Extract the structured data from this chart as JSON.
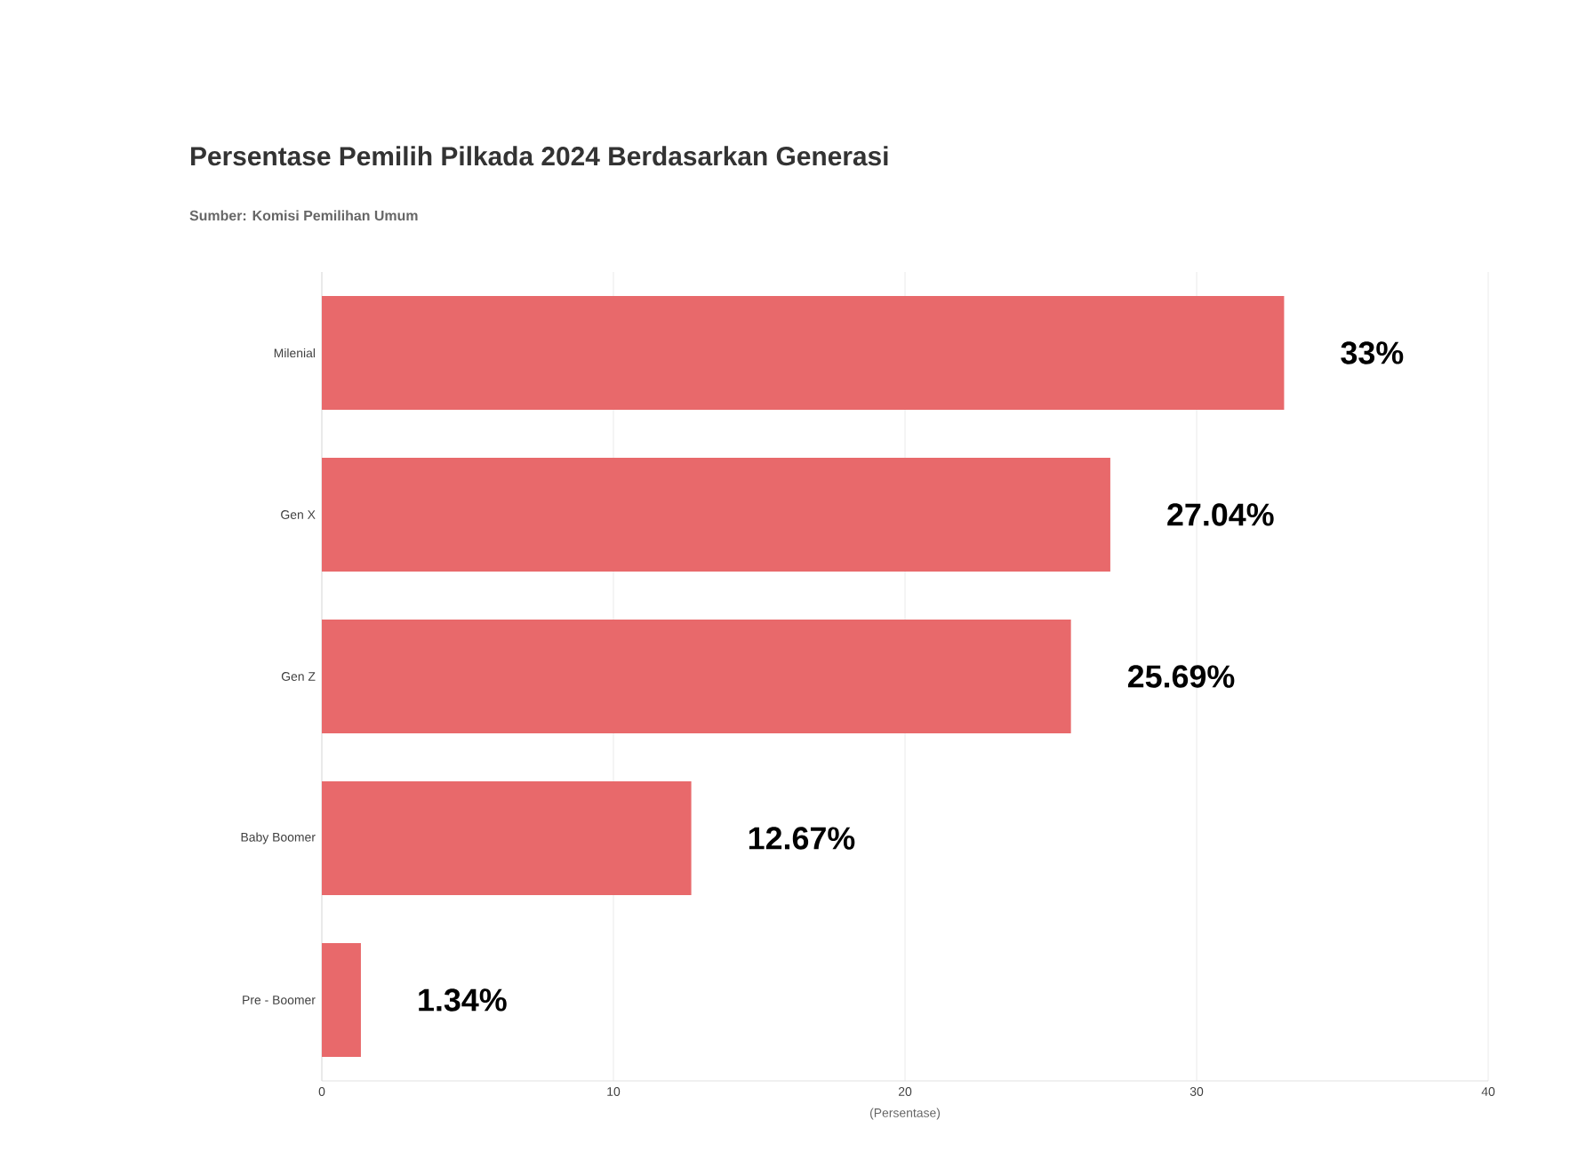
{
  "chart_data": {
    "type": "bar",
    "orientation": "horizontal",
    "title": "Persentase Pemilih Pilkada 2024 Berdasarkan Generasi",
    "subtitle": "Sumber: Komisi Pemilihan Umum",
    "xlabel": "(Persentase)",
    "categories": [
      "Milenial",
      "Gen X",
      "Gen Z",
      "Baby Boomer",
      "Pre - Boomer"
    ],
    "values": [
      33,
      27.04,
      25.69,
      12.67,
      1.34
    ],
    "value_labels": [
      "33%",
      "27.04%",
      "25.69%",
      "12.67%",
      "1.34%"
    ],
    "color": "#e8696b",
    "xlim": [
      0,
      40
    ],
    "xticks": [
      0,
      10,
      20,
      30,
      40
    ],
    "grid": "x"
  }
}
